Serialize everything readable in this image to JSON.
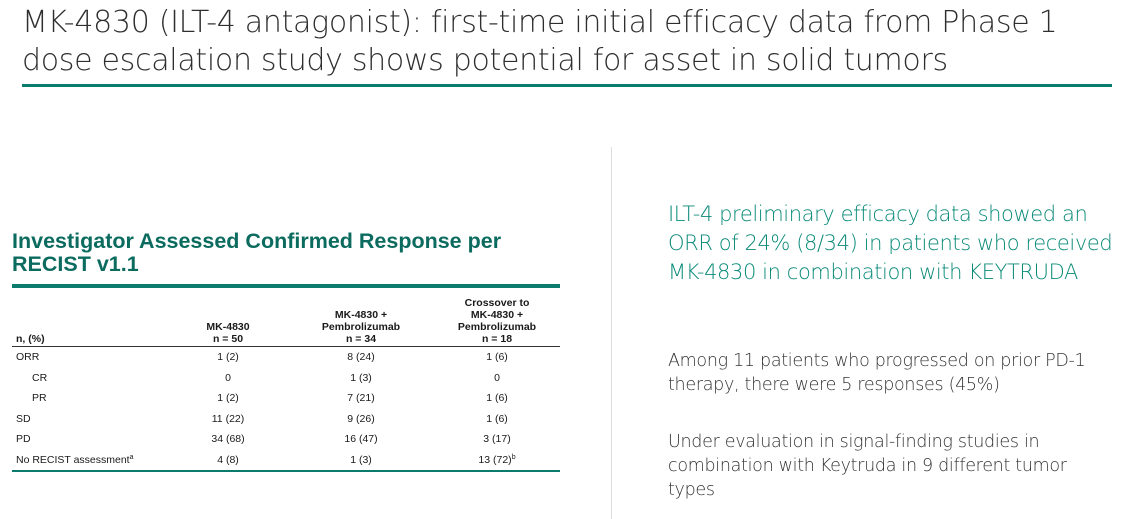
{
  "slide": {
    "title": "MK-4830 (ILT-4 antagonist): first-time initial efficacy data from Phase 1 dose escalation study shows potential for asset in solid tumors",
    "accent_color": "#0a7b6c"
  },
  "table": {
    "heading": "Investigator Assessed Confirmed Response per RECIST v1.1",
    "header": {
      "label": "n, (%)",
      "columns": [
        {
          "lines": [
            "MK-4830",
            "n = 50"
          ]
        },
        {
          "lines": [
            "MK-4830 +",
            "Pembrolizumab",
            "n = 34"
          ]
        },
        {
          "lines": [
            "Crossover to",
            "MK-4830 +",
            "Pembrolizumab",
            "n = 18"
          ]
        }
      ]
    },
    "rows": [
      {
        "label": "ORR",
        "values": [
          "1 (2)",
          "8 (24)",
          "1 (6)"
        ]
      },
      {
        "label": "CR",
        "values": [
          "0",
          "1 (3)",
          "0"
        ]
      },
      {
        "label": "PR",
        "values": [
          "1 (2)",
          "7 (21)",
          "1 (6)"
        ]
      },
      {
        "label": "SD",
        "values": [
          "11 (22)",
          "9 (26)",
          "1 (6)"
        ]
      },
      {
        "label": "PD",
        "values": [
          "34 (68)",
          "16 (47)",
          "3 (17)"
        ]
      },
      {
        "label": "No RECIST assessment",
        "label_sup": "a",
        "values": [
          "4 (8)",
          "1 (3)",
          "13 (72)"
        ],
        "last_sup": "b"
      }
    ]
  },
  "right_panel": {
    "highlight": "ILT-4 preliminary efficacy data showed an ORR of 24% (8/34) in patients who received MK-4830 in combination with KEYTRUDA",
    "paragraphs": [
      "Among 11 patients who progressed on prior PD-1 therapy, there were 5 responses (45%)",
      "Under evaluation in signal-finding studies in combination with Keytruda in 9 different tumor types"
    ]
  }
}
